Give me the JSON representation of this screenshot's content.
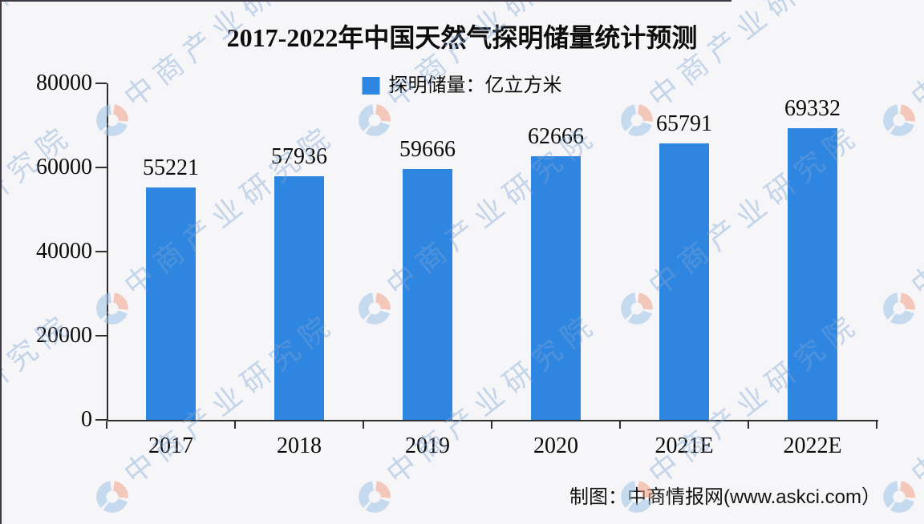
{
  "title": "2017-2022年中国天然气探明储量统计预测",
  "legend": {
    "label": "探明储量：亿立方米"
  },
  "chart_data": {
    "type": "bar",
    "title": "2017-2022年中国天然气探明储量统计预测",
    "categories": [
      "2017",
      "2018",
      "2019",
      "2020",
      "2021E",
      "2022E"
    ],
    "values": [
      55221,
      57936,
      59666,
      62666,
      65791,
      69332
    ],
    "series": [
      {
        "name": "探明储量",
        "unit": "亿立方米",
        "values": [
          55221,
          57936,
          59666,
          62666,
          65791,
          69332
        ]
      }
    ],
    "xlabel": "",
    "ylabel": "",
    "ylim": [
      0,
      80000
    ],
    "y_ticks": [
      0,
      20000,
      40000,
      60000,
      80000
    ],
    "grid": false,
    "legend_position": "top-center",
    "data_labels_shown": true,
    "bar_color": "#2E86E1"
  },
  "footer": {
    "credit": "制图：中商情报网(www.askci.com）"
  },
  "watermark": {
    "text": "中商产业研究院",
    "logo": "askci-logo"
  },
  "colors": {
    "background": "#F6F6F8",
    "axis": "#2F2F2F",
    "text": "#000000",
    "watermark_text": "rgba(126,164,213,0.42)",
    "border_line": "#3E3744"
  }
}
